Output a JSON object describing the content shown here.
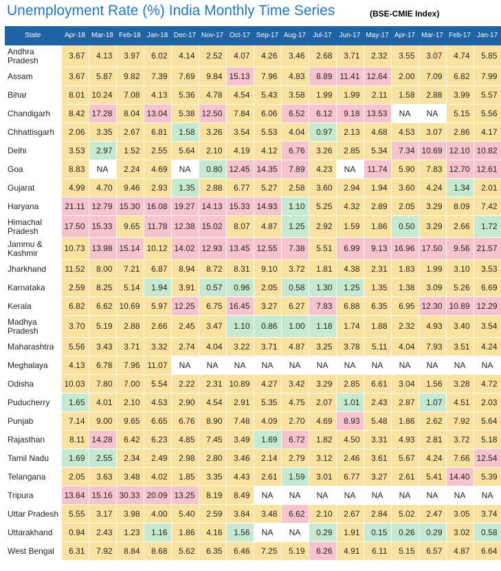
{
  "title": "Unemployment Rate (%) India Monthly Time Series",
  "subtitle": "(BSE-CMIE Index)",
  "colors": {
    "header": "#1e63a6",
    "title": "#1f77c8",
    "moderate": "#fbe29f",
    "high": "#f7c3cc",
    "low": "#c6ead0",
    "na": "#ffffff"
  },
  "chart_data": {
    "type": "table",
    "title": "Unemployment Rate (%) India Monthly Time Series",
    "subtitle": "(BSE-CMIE Index)",
    "row_header": "State",
    "columns": [
      "Apr-18",
      "Mar-18",
      "Feb-18",
      "Jan-18",
      "Dec-17",
      "Nov-17",
      "Oct-17",
      "Sep-17",
      "Aug-17",
      "Jul-17",
      "Jun-17",
      "May-17",
      "Apr-17",
      "Mar-17",
      "Feb-17",
      "Jan-17"
    ],
    "rows": [
      {
        "state": "Andhra Pradesh",
        "values": [
          "3.67",
          "4.13",
          "3.97",
          "6.02",
          "4.14",
          "2.52",
          "4.07",
          "4.26",
          "3.46",
          "2.68",
          "3.71",
          "2.32",
          "3.55",
          "3.07",
          "4.74",
          "5.85"
        ],
        "levels": [
          "m",
          "m",
          "m",
          "m",
          "m",
          "m",
          "m",
          "m",
          "m",
          "m",
          "m",
          "m",
          "m",
          "m",
          "m",
          "m"
        ]
      },
      {
        "state": "Assam",
        "values": [
          "3.67",
          "5.87",
          "9.82",
          "7.39",
          "7.69",
          "9.84",
          "15.13",
          "7.96",
          "4.83",
          "8.89",
          "11.41",
          "12.64",
          "2.00",
          "7.09",
          "6.82",
          "7.99"
        ],
        "levels": [
          "m",
          "m",
          "m",
          "m",
          "m",
          "m",
          "h",
          "m",
          "m",
          "h",
          "h",
          "h",
          "m",
          "m",
          "m",
          "m"
        ]
      },
      {
        "state": "Bihar",
        "values": [
          "8.01",
          "10.24",
          "7.08",
          "4.13",
          "5.36",
          "4.78",
          "4.54",
          "5.43",
          "3.58",
          "1.99",
          "1.99",
          "2.11",
          "1.58",
          "2.88",
          "3.99",
          "5.57"
        ],
        "levels": [
          "m",
          "m",
          "m",
          "m",
          "m",
          "m",
          "m",
          "m",
          "m",
          "m",
          "m",
          "m",
          "m",
          "m",
          "m",
          "m"
        ]
      },
      {
        "state": "Chandigarh",
        "values": [
          "8.42",
          "17.28",
          "8.04",
          "13.04",
          "5.38",
          "12.50",
          "7.84",
          "6.06",
          "6.52",
          "6.12",
          "9.18",
          "13.53",
          "NA",
          "NA",
          "5.15",
          "5.56"
        ],
        "levels": [
          "m",
          "h",
          "m",
          "h",
          "m",
          "h",
          "m",
          "m",
          "h",
          "h",
          "h",
          "h",
          "na",
          "na",
          "m",
          "m"
        ]
      },
      {
        "state": "Chhattisgarh",
        "values": [
          "2.06",
          "3.35",
          "2.67",
          "6.81",
          "1.58",
          "3.26",
          "3.54",
          "5.53",
          "4.04",
          "0.97",
          "2.13",
          "4.68",
          "4.53",
          "3.07",
          "2.86",
          "4.17"
        ],
        "levels": [
          "m",
          "m",
          "m",
          "m",
          "l",
          "m",
          "m",
          "m",
          "m",
          "l",
          "m",
          "m",
          "m",
          "m",
          "m",
          "m"
        ]
      },
      {
        "state": "Delhi",
        "values": [
          "3.53",
          "2.97",
          "1.52",
          "2.55",
          "5.64",
          "2.10",
          "4.19",
          "4.12",
          "6.76",
          "3.26",
          "2.85",
          "5.34",
          "7.34",
          "10.69",
          "12.10",
          "10.82"
        ],
        "levels": [
          "m",
          "l",
          "m",
          "m",
          "m",
          "m",
          "m",
          "m",
          "h",
          "m",
          "m",
          "m",
          "h",
          "h",
          "h",
          "h"
        ]
      },
      {
        "state": "Goa",
        "values": [
          "8.83",
          "NA",
          "2.24",
          "4.69",
          "NA",
          "0.80",
          "12.45",
          "14.35",
          "7.89",
          "4.23",
          "NA",
          "11.74",
          "5.90",
          "7.83",
          "12.70",
          "12.61"
        ],
        "levels": [
          "m",
          "na",
          "m",
          "m",
          "na",
          "l",
          "h",
          "h",
          "h",
          "m",
          "na",
          "h",
          "m",
          "m",
          "h",
          "h"
        ]
      },
      {
        "state": "Gujarat",
        "values": [
          "4.99",
          "4.70",
          "9.46",
          "2.93",
          "1.35",
          "2.88",
          "6.77",
          "5.27",
          "2.58",
          "3.60",
          "2.94",
          "1.94",
          "3.60",
          "4.24",
          "1.34",
          "2.01"
        ],
        "levels": [
          "m",
          "m",
          "m",
          "m",
          "l",
          "m",
          "m",
          "m",
          "m",
          "m",
          "m",
          "m",
          "m",
          "m",
          "l",
          "m"
        ]
      },
      {
        "state": "Haryana",
        "values": [
          "21.11",
          "12.79",
          "15.30",
          "16.08",
          "19.27",
          "14.13",
          "15.33",
          "14.93",
          "1.10",
          "5.25",
          "4.32",
          "2.89",
          "2.05",
          "3.29",
          "8.09",
          "7.42"
        ],
        "levels": [
          "h",
          "h",
          "h",
          "h",
          "h",
          "h",
          "h",
          "h",
          "l",
          "m",
          "m",
          "m",
          "m",
          "m",
          "m",
          "m"
        ]
      },
      {
        "state": "Himachal Pradesh",
        "values": [
          "17.50",
          "15.33",
          "9.65",
          "11.78",
          "12.38",
          "15.02",
          "8.07",
          "4.87",
          "1.25",
          "2.92",
          "1.59",
          "1.86",
          "0.50",
          "3.29",
          "2.66",
          "1.72"
        ],
        "levels": [
          "h",
          "h",
          "m",
          "h",
          "h",
          "h",
          "m",
          "m",
          "l",
          "m",
          "m",
          "m",
          "l",
          "m",
          "m",
          "l"
        ]
      },
      {
        "state": "Jammu & Kashmir",
        "values": [
          "10.73",
          "13.98",
          "15.14",
          "10.12",
          "14.02",
          "12.93",
          "13.45",
          "12.55",
          "7.38",
          "5.51",
          "6.99",
          "9.13",
          "16.96",
          "17.50",
          "9.56",
          "21.57"
        ],
        "levels": [
          "m",
          "h",
          "h",
          "m",
          "h",
          "h",
          "h",
          "h",
          "h",
          "m",
          "h",
          "h",
          "h",
          "h",
          "h",
          "h"
        ]
      },
      {
        "state": "Jharkhand",
        "values": [
          "11.52",
          "8.00",
          "7.21",
          "6.87",
          "8.94",
          "8.72",
          "8.31",
          "9.10",
          "3.72",
          "1.81",
          "4.38",
          "2.31",
          "1.83",
          "1.99",
          "3.10",
          "3.53"
        ],
        "levels": [
          "m",
          "m",
          "m",
          "m",
          "m",
          "m",
          "m",
          "m",
          "m",
          "m",
          "m",
          "m",
          "m",
          "m",
          "m",
          "m"
        ]
      },
      {
        "state": "Karnataka",
        "values": [
          "2.59",
          "8.25",
          "5.14",
          "1.94",
          "3.91",
          "0.57",
          "0.96",
          "2.05",
          "0.58",
          "1.30",
          "1.25",
          "1.35",
          "1.38",
          "3.09",
          "5.26",
          "6.69"
        ],
        "levels": [
          "m",
          "m",
          "m",
          "l",
          "m",
          "l",
          "l",
          "m",
          "l",
          "l",
          "l",
          "m",
          "m",
          "m",
          "m",
          "m"
        ]
      },
      {
        "state": "Kerala",
        "values": [
          "6.82",
          "6.62",
          "10.69",
          "5.97",
          "12.25",
          "6.75",
          "16.45",
          "3.27",
          "6.27",
          "7.83",
          "6.88",
          "6.35",
          "6.95",
          "12.30",
          "10.89",
          "12.29"
        ],
        "levels": [
          "m",
          "m",
          "m",
          "m",
          "h",
          "m",
          "h",
          "m",
          "m",
          "h",
          "m",
          "m",
          "m",
          "h",
          "h",
          "h"
        ]
      },
      {
        "state": "Madhya Pradesh",
        "values": [
          "3.70",
          "5.19",
          "2.88",
          "2.66",
          "2.45",
          "3.47",
          "1.10",
          "0.86",
          "1.00",
          "1.18",
          "1.74",
          "1.88",
          "2.32",
          "4.93",
          "3.40",
          "3.54"
        ],
        "levels": [
          "m",
          "m",
          "m",
          "m",
          "m",
          "m",
          "l",
          "l",
          "l",
          "l",
          "m",
          "m",
          "m",
          "m",
          "m",
          "m"
        ]
      },
      {
        "state": "Maharashtra",
        "values": [
          "5.56",
          "3.43",
          "3.71",
          "3.32",
          "2.74",
          "4.04",
          "3.22",
          "3.71",
          "4.87",
          "3.25",
          "3.78",
          "5.11",
          "4.04",
          "7.93",
          "3.51",
          "4.24"
        ],
        "levels": [
          "m",
          "m",
          "m",
          "m",
          "m",
          "m",
          "m",
          "m",
          "m",
          "m",
          "m",
          "m",
          "m",
          "m",
          "m",
          "m"
        ]
      },
      {
        "state": "Meghalaya",
        "values": [
          "4.13",
          "6.78",
          "7.96",
          "11.07",
          "NA",
          "NA",
          "NA",
          "NA",
          "NA",
          "NA",
          "NA",
          "NA",
          "NA",
          "NA",
          "NA",
          "NA"
        ],
        "levels": [
          "m",
          "m",
          "m",
          "m",
          "na",
          "na",
          "na",
          "na",
          "na",
          "na",
          "na",
          "na",
          "na",
          "na",
          "na",
          "na"
        ]
      },
      {
        "state": "Odisha",
        "values": [
          "10.03",
          "7.80",
          "7.00",
          "5.54",
          "2.22",
          "2.31",
          "10.89",
          "4.27",
          "3.42",
          "3.29",
          "2.85",
          "6.61",
          "3.04",
          "1.56",
          "3.28",
          "4.72"
        ],
        "levels": [
          "m",
          "m",
          "m",
          "m",
          "m",
          "m",
          "m",
          "m",
          "m",
          "m",
          "m",
          "m",
          "m",
          "m",
          "m",
          "m"
        ]
      },
      {
        "state": "Puducherry",
        "values": [
          "1.65",
          "4.01",
          "2.10",
          "4.53",
          "2.90",
          "4.54",
          "2.91",
          "5.35",
          "4.75",
          "2.07",
          "1.01",
          "2.43",
          "2.87",
          "1.07",
          "4.51",
          "2.03"
        ],
        "levels": [
          "l",
          "m",
          "m",
          "m",
          "m",
          "m",
          "m",
          "m",
          "m",
          "m",
          "l",
          "m",
          "m",
          "l",
          "m",
          "m"
        ]
      },
      {
        "state": "Punjab",
        "values": [
          "7.14",
          "9.00",
          "9.65",
          "6.65",
          "6.76",
          "8.90",
          "7.48",
          "4.09",
          "2.70",
          "4.69",
          "8.93",
          "5.48",
          "1.86",
          "2.62",
          "7.92",
          "5.64"
        ],
        "levels": [
          "m",
          "m",
          "m",
          "m",
          "m",
          "m",
          "m",
          "m",
          "m",
          "m",
          "h",
          "m",
          "m",
          "m",
          "m",
          "m"
        ]
      },
      {
        "state": "Rajasthan",
        "values": [
          "8.11",
          "14.28",
          "6.42",
          "6.23",
          "4.85",
          "7.45",
          "3.49",
          "1.69",
          "6.72",
          "1.82",
          "4.50",
          "3.31",
          "4.93",
          "2.81",
          "3.72",
          "5.18"
        ],
        "levels": [
          "m",
          "h",
          "m",
          "m",
          "m",
          "m",
          "m",
          "l",
          "h",
          "m",
          "m",
          "m",
          "m",
          "m",
          "m",
          "m"
        ]
      },
      {
        "state": "Tamil Nadu",
        "values": [
          "1.69",
          "2.55",
          "2.34",
          "2.49",
          "2.98",
          "2.80",
          "3.46",
          "2.14",
          "2.79",
          "3.12",
          "2.46",
          "3.61",
          "5.67",
          "4.24",
          "7.66",
          "12.54"
        ],
        "levels": [
          "l",
          "l",
          "m",
          "m",
          "m",
          "m",
          "m",
          "m",
          "m",
          "m",
          "m",
          "m",
          "m",
          "m",
          "m",
          "h"
        ]
      },
      {
        "state": "Telangana",
        "values": [
          "2.05",
          "3.63",
          "3.48",
          "4.02",
          "1.85",
          "3.35",
          "4.43",
          "2.61",
          "1.59",
          "3.01",
          "6.77",
          "3.27",
          "2.61",
          "5.41",
          "14.40",
          "5.39"
        ],
        "levels": [
          "m",
          "m",
          "m",
          "m",
          "m",
          "m",
          "m",
          "m",
          "l",
          "m",
          "m",
          "m",
          "m",
          "m",
          "h",
          "m"
        ]
      },
      {
        "state": "Tripura",
        "values": [
          "13.64",
          "15.16",
          "30.33",
          "20.09",
          "13.25",
          "8.19",
          "8.49",
          "NA",
          "NA",
          "NA",
          "NA",
          "NA",
          "NA",
          "NA",
          "NA",
          "NA"
        ],
        "levels": [
          "h",
          "h",
          "h",
          "h",
          "h",
          "m",
          "m",
          "na",
          "na",
          "na",
          "na",
          "na",
          "na",
          "na",
          "na",
          "na"
        ]
      },
      {
        "state": "Uttar Pradesh",
        "values": [
          "5.55",
          "3.17",
          "3.98",
          "4.00",
          "5.40",
          "2.59",
          "3.84",
          "3.48",
          "6.62",
          "2.10",
          "2.67",
          "2.84",
          "5.02",
          "2.47",
          "3.05",
          "3.74"
        ],
        "levels": [
          "m",
          "m",
          "m",
          "m",
          "m",
          "m",
          "m",
          "m",
          "h",
          "m",
          "m",
          "m",
          "m",
          "m",
          "m",
          "m"
        ]
      },
      {
        "state": "Uttarakhand",
        "values": [
          "0.94",
          "2.43",
          "1.23",
          "1.16",
          "1.86",
          "4.16",
          "1.56",
          "NA",
          "NA",
          "0.29",
          "1.91",
          "0.15",
          "0.26",
          "0.29",
          "3.02",
          "0.58"
        ],
        "levels": [
          "m",
          "m",
          "m",
          "l",
          "m",
          "m",
          "l",
          "na",
          "na",
          "l",
          "m",
          "l",
          "l",
          "l",
          "m",
          "l"
        ]
      },
      {
        "state": "West Bengal",
        "values": [
          "6.31",
          "7.92",
          "8.84",
          "8.68",
          "5.62",
          "6.35",
          "6.46",
          "7.25",
          "5.19",
          "6.26",
          "4.91",
          "6.11",
          "5.15",
          "6.57",
          "4.87",
          "6.64"
        ],
        "levels": [
          "m",
          "m",
          "m",
          "m",
          "m",
          "m",
          "m",
          "m",
          "m",
          "h",
          "m",
          "m",
          "m",
          "m",
          "m",
          "m"
        ]
      }
    ]
  }
}
